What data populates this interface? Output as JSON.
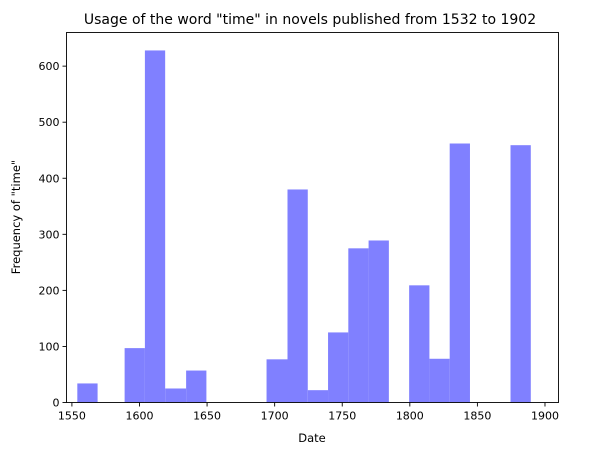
{
  "chart_data": {
    "type": "bar",
    "title": "Usage of the word \"time\" in novels published from 1532 to 1902",
    "xlabel": "Date",
    "ylabel": "Frequency of \"time\"",
    "xlim": [
      1546,
      1910
    ],
    "ylim": [
      0,
      660
    ],
    "x_ticks": [
      1550,
      1600,
      1650,
      1700,
      1750,
      1800,
      1850,
      1900
    ],
    "y_ticks": [
      0,
      100,
      200,
      300,
      400,
      500,
      600
    ],
    "grid": false,
    "legend": "none",
    "bar_color": "#8080ff",
    "bins": [
      {
        "start": 1554.0,
        "end": 1569.0,
        "value": 34
      },
      {
        "start": 1589.0,
        "end": 1604.0,
        "value": 97
      },
      {
        "start": 1604.0,
        "end": 1619.0,
        "value": 628
      },
      {
        "start": 1619.0,
        "end": 1634.5,
        "value": 25
      },
      {
        "start": 1634.5,
        "end": 1649.5,
        "value": 57
      },
      {
        "start": 1694.0,
        "end": 1709.5,
        "value": 77
      },
      {
        "start": 1709.5,
        "end": 1724.5,
        "value": 380
      },
      {
        "start": 1724.5,
        "end": 1739.5,
        "value": 22
      },
      {
        "start": 1739.5,
        "end": 1754.5,
        "value": 125
      },
      {
        "start": 1754.5,
        "end": 1769.5,
        "value": 275
      },
      {
        "start": 1769.5,
        "end": 1784.5,
        "value": 289
      },
      {
        "start": 1799.5,
        "end": 1814.5,
        "value": 209
      },
      {
        "start": 1814.5,
        "end": 1829.5,
        "value": 78
      },
      {
        "start": 1829.5,
        "end": 1844.5,
        "value": 462
      },
      {
        "start": 1874.5,
        "end": 1889.5,
        "value": 459
      }
    ]
  }
}
